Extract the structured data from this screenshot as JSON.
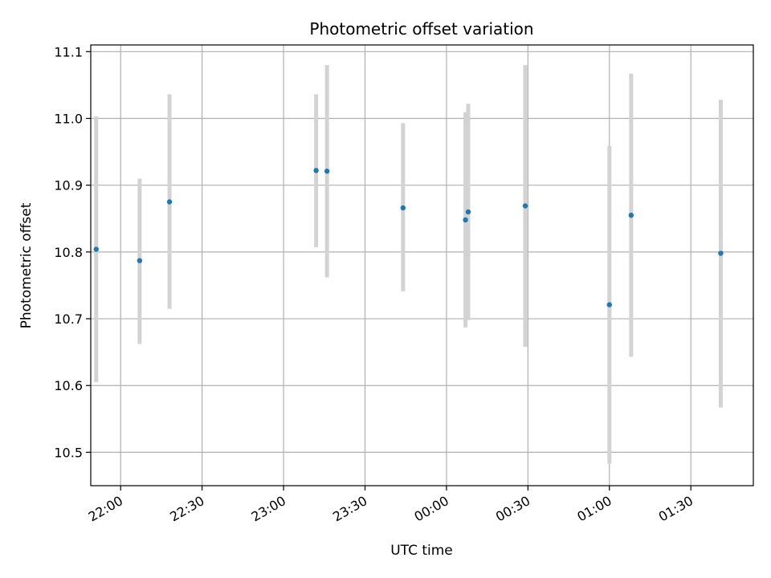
{
  "chart_data": {
    "type": "scatter",
    "title": "Photometric offset variation",
    "xlabel": "UTC time",
    "ylabel": "Photometric offset",
    "x_ticks": [
      "22:00",
      "22:30",
      "23:00",
      "23:30",
      "00:00",
      "00:30",
      "01:00",
      "01:30"
    ],
    "y_ticks": [
      "10.5",
      "10.6",
      "10.7",
      "10.8",
      "10.9",
      "11.0",
      "11.1"
    ],
    "xlim": [
      "21:49",
      "01:53"
    ],
    "ylim": [
      10.45,
      11.11
    ],
    "grid": true,
    "points": [
      {
        "x": "21:51",
        "y": 10.804,
        "err_low": 10.605,
        "err_high": 11.003
      },
      {
        "x": "22:07",
        "y": 10.787,
        "err_low": 10.662,
        "err_high": 10.91
      },
      {
        "x": "22:18",
        "y": 10.875,
        "err_low": 10.715,
        "err_high": 11.036
      },
      {
        "x": "23:12",
        "y": 10.922,
        "err_low": 10.807,
        "err_high": 11.036
      },
      {
        "x": "23:16",
        "y": 10.921,
        "err_low": 10.762,
        "err_high": 11.08
      },
      {
        "x": "23:44",
        "y": 10.866,
        "err_low": 10.741,
        "err_high": 10.993
      },
      {
        "x": "00:07",
        "y": 10.848,
        "err_low": 10.687,
        "err_high": 11.009
      },
      {
        "x": "00:08",
        "y": 10.86,
        "err_low": 10.698,
        "err_high": 11.022
      },
      {
        "x": "00:29",
        "y": 10.869,
        "err_low": 10.658,
        "err_high": 11.08
      },
      {
        "x": "01:00",
        "y": 10.721,
        "err_low": 10.483,
        "err_high": 10.959
      },
      {
        "x": "01:08",
        "y": 10.855,
        "err_low": 10.643,
        "err_high": 11.067
      },
      {
        "x": "01:41",
        "y": 10.798,
        "err_low": 10.567,
        "err_high": 11.028
      }
    ],
    "marker_color": "#1f77b4",
    "errorbar_color": "#d3d3d3",
    "grid_color": "#b0b0b0"
  }
}
